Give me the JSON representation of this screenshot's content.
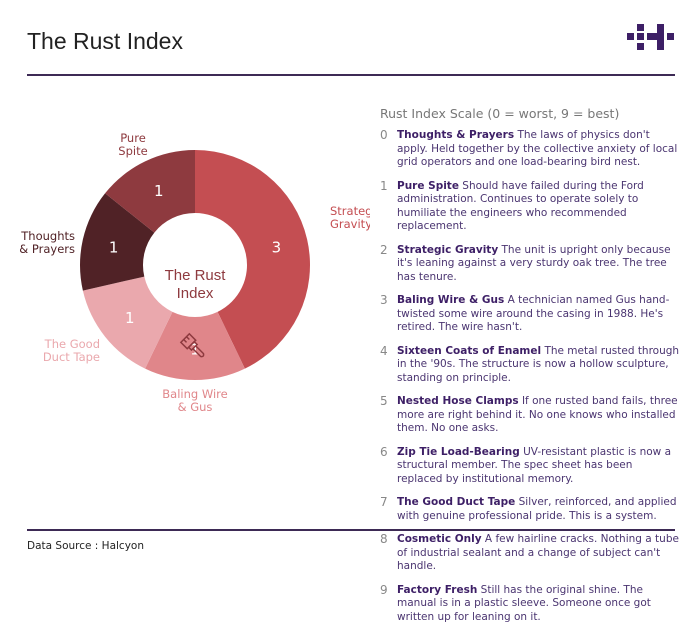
{
  "title": "The Rust Index",
  "footer": "Data Source : Halcyon",
  "colors": {
    "accent": "#3d1f66",
    "strategic": "#c44e52",
    "baling": "#e0868a",
    "duct": "#eaa8ad",
    "thoughts": "#502226",
    "spite": "#8e3a3f"
  },
  "chart_data": {
    "type": "pie",
    "variant": "donut",
    "center_label": "The Rust Index",
    "center_icon": "paintbrush-icon",
    "series": [
      {
        "name": "Strategic Gravity",
        "value": 3,
        "color": "#c44e52"
      },
      {
        "name": "Baling Wire & Gus",
        "value": 1,
        "color": "#e0868a"
      },
      {
        "name": "The Good Duct Tape",
        "value": 1,
        "color": "#eaa8ad"
      },
      {
        "name": "Thoughts & Prayers",
        "value": 1,
        "color": "#502226"
      },
      {
        "name": "Pure Spite",
        "value": 1,
        "color": "#8e3a3f"
      }
    ]
  },
  "scale": {
    "title": "Rust Index Scale (0 = worst, 9 = best)",
    "items": [
      {
        "n": "0",
        "name": "Thoughts & Prayers",
        "desc": "The laws of physics don't apply. Held together by the collective anxiety of local grid operators and one load-bearing bird nest."
      },
      {
        "n": "1",
        "name": "Pure Spite",
        "desc": "Should have failed during the Ford administration. Continues to operate solely to humiliate the engineers who recommended replacement."
      },
      {
        "n": "2",
        "name": "Strategic Gravity",
        "desc": "The unit is upright only because it's leaning against a very sturdy oak tree. The tree has tenure."
      },
      {
        "n": "3",
        "name": "Baling Wire & Gus",
        "desc": "A technician named Gus hand-twisted some wire around the casing in 1988. He's retired. The wire hasn't."
      },
      {
        "n": "4",
        "name": "Sixteen Coats of Enamel",
        "desc": "The metal rusted through in the '90s. The structure is now a hollow sculpture, standing on principle."
      },
      {
        "n": "5",
        "name": "Nested Hose Clamps",
        "desc": "If one rusted band fails, three more are right behind it. No one knows who installed them. No one asks."
      },
      {
        "n": "6",
        "name": "Zip Tie Load-Bearing",
        "desc": "UV-resistant plastic is now a structural member. The spec sheet has been replaced by institutional memory."
      },
      {
        "n": "7",
        "name": "The Good Duct Tape",
        "desc": "Silver, reinforced, and applied with genuine professional pride. This is a system."
      },
      {
        "n": "8",
        "name": "Cosmetic Only",
        "desc": "A few hairline cracks. Nothing a tube of industrial sealant and a change of subject can't handle."
      },
      {
        "n": "9",
        "name": "Factory Fresh",
        "desc": "Still has the original shine. The manual is in a plastic sleeve. Someone once got written up for leaning on it."
      }
    ]
  }
}
